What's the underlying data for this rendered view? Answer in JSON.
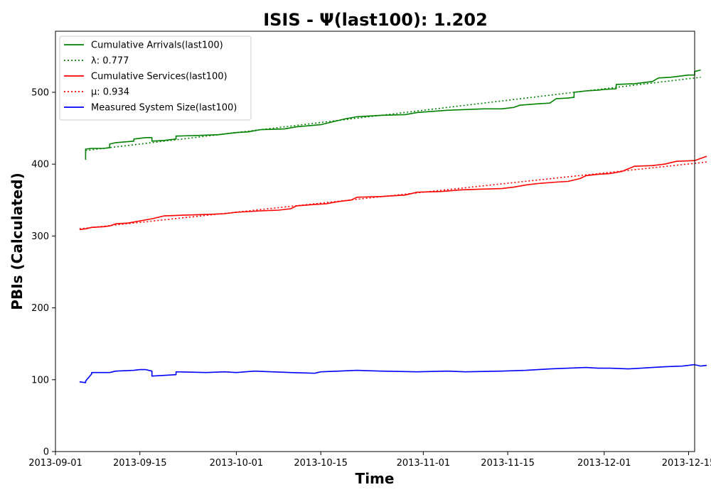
{
  "chart_data": {
    "type": "line",
    "title": "ISIS -  Ψ(last100): 1.202",
    "xlabel": "Time",
    "ylabel": "PBIs (Calculated)",
    "xlim": [
      "2013-09-01",
      "2013-12-16"
    ],
    "ylim": [
      0,
      585
    ],
    "x_ticks": [
      "2013-09-01",
      "2013-09-15",
      "2013-10-01",
      "2013-10-15",
      "2013-11-01",
      "2013-11-15",
      "2013-12-01",
      "2013-12-15"
    ],
    "y_ticks": [
      0,
      100,
      200,
      300,
      400,
      500
    ],
    "grid": false,
    "legend_position": "top-left",
    "series": [
      {
        "name": "Cumulative Arrivals(last100)",
        "color": "#008000",
        "style": "solid",
        "points": [
          [
            "2013-09-06",
            406
          ],
          [
            "2013-09-06",
            408
          ],
          [
            "2013-09-06",
            421
          ],
          [
            "2013-09-07",
            422
          ],
          [
            "2013-09-09",
            422
          ],
          [
            "2013-09-10",
            423
          ],
          [
            "2013-09-10",
            428
          ],
          [
            "2013-09-11",
            430
          ],
          [
            "2013-09-14",
            432
          ],
          [
            "2013-09-14",
            435
          ],
          [
            "2013-09-15",
            436
          ],
          [
            "2013-09-16",
            437
          ],
          [
            "2013-09-17",
            437
          ],
          [
            "2013-09-17",
            432
          ],
          [
            "2013-09-19",
            433
          ],
          [
            "2013-09-20",
            434
          ],
          [
            "2013-09-21",
            435
          ],
          [
            "2013-09-21",
            439
          ],
          [
            "2013-09-25",
            440
          ],
          [
            "2013-09-28",
            441
          ],
          [
            "2013-10-01",
            444
          ],
          [
            "2013-10-03",
            445
          ],
          [
            "2013-10-05",
            448
          ],
          [
            "2013-10-09",
            449
          ],
          [
            "2013-10-11",
            452
          ],
          [
            "2013-10-15",
            455
          ],
          [
            "2013-10-17",
            459
          ],
          [
            "2013-10-19",
            463
          ],
          [
            "2013-10-21",
            466
          ],
          [
            "2013-10-25",
            468
          ],
          [
            "2013-10-29",
            469
          ],
          [
            "2013-10-31",
            472
          ],
          [
            "2013-11-05",
            475
          ],
          [
            "2013-11-08",
            476
          ],
          [
            "2013-11-11",
            477
          ],
          [
            "2013-11-14",
            477
          ],
          [
            "2013-11-16",
            479
          ],
          [
            "2013-11-17",
            482
          ],
          [
            "2013-11-20",
            484
          ],
          [
            "2013-11-22",
            485
          ],
          [
            "2013-11-23",
            491
          ],
          [
            "2013-11-25",
            492
          ],
          [
            "2013-11-26",
            493
          ],
          [
            "2013-11-26",
            500
          ],
          [
            "2013-11-28",
            502
          ],
          [
            "2013-11-30",
            503
          ],
          [
            "2013-12-01",
            504
          ],
          [
            "2013-12-03",
            505
          ],
          [
            "2013-12-03",
            511
          ],
          [
            "2013-12-06",
            512
          ],
          [
            "2013-12-08",
            514
          ],
          [
            "2013-12-09",
            515
          ],
          [
            "2013-12-10",
            520
          ],
          [
            "2013-12-12",
            521
          ],
          [
            "2013-12-13",
            522
          ],
          [
            "2013-12-15",
            524
          ],
          [
            "2013-12-16",
            524
          ],
          [
            "2013-12-16",
            527
          ],
          [
            "2013-12-16",
            529
          ],
          [
            "2013-12-17",
            531
          ]
        ]
      },
      {
        "name": "λ: 0.777",
        "color": "#008000",
        "style": "dotted",
        "points": [
          [
            "2013-09-06",
            419
          ],
          [
            "2013-12-17",
            521
          ]
        ]
      },
      {
        "name": "Cumulative Services(last100)",
        "color": "#ff0000",
        "style": "solid",
        "points": [
          [
            "2013-09-05",
            309
          ],
          [
            "2013-09-06",
            310
          ],
          [
            "2013-09-07",
            312
          ],
          [
            "2013-09-09",
            313
          ],
          [
            "2013-09-10",
            314
          ],
          [
            "2013-09-11",
            317
          ],
          [
            "2013-09-13",
            318
          ],
          [
            "2013-09-15",
            321
          ],
          [
            "2013-09-17",
            324
          ],
          [
            "2013-09-18",
            326
          ],
          [
            "2013-09-19",
            328
          ],
          [
            "2013-09-22",
            329
          ],
          [
            "2013-09-26",
            330
          ],
          [
            "2013-09-29",
            331
          ],
          [
            "2013-10-01",
            333
          ],
          [
            "2013-10-05",
            335
          ],
          [
            "2013-10-08",
            336
          ],
          [
            "2013-10-10",
            338
          ],
          [
            "2013-10-11",
            342
          ],
          [
            "2013-10-14",
            344
          ],
          [
            "2013-10-16",
            345
          ],
          [
            "2013-10-18",
            348
          ],
          [
            "2013-10-20",
            350
          ],
          [
            "2013-10-21",
            354
          ],
          [
            "2013-10-25",
            355
          ],
          [
            "2013-10-29",
            357
          ],
          [
            "2013-10-31",
            361
          ],
          [
            "2013-11-04",
            362
          ],
          [
            "2013-11-07",
            364
          ],
          [
            "2013-11-10",
            365
          ],
          [
            "2013-11-14",
            366
          ],
          [
            "2013-11-16",
            368
          ],
          [
            "2013-11-18",
            371
          ],
          [
            "2013-11-20",
            373
          ],
          [
            "2013-11-23",
            375
          ],
          [
            "2013-11-25",
            376
          ],
          [
            "2013-11-27",
            380
          ],
          [
            "2013-11-28",
            384
          ],
          [
            "2013-11-30",
            386
          ],
          [
            "2013-12-02",
            387
          ],
          [
            "2013-12-04",
            390
          ],
          [
            "2013-12-06",
            397
          ],
          [
            "2013-12-09",
            398
          ],
          [
            "2013-12-11",
            400
          ],
          [
            "2013-12-13",
            404
          ],
          [
            "2013-12-16",
            405
          ],
          [
            "2013-12-17",
            408
          ],
          [
            "2013-12-18",
            411
          ]
        ]
      },
      {
        "name": "μ: 0.934",
        "color": "#ff0000",
        "style": "dotted",
        "points": [
          [
            "2013-09-05",
            310
          ],
          [
            "2013-12-18",
            403
          ]
        ]
      },
      {
        "name": "Measured System Size(last100)",
        "color": "#0000ff",
        "style": "solid",
        "points": [
          [
            "2013-09-05",
            97
          ],
          [
            "2013-09-06",
            96
          ],
          [
            "2013-09-06",
            98
          ],
          [
            "2013-09-07",
            108
          ],
          [
            "2013-09-07",
            110
          ],
          [
            "2013-09-10",
            110
          ],
          [
            "2013-09-11",
            112
          ],
          [
            "2013-09-14",
            113
          ],
          [
            "2013-09-15",
            114
          ],
          [
            "2013-09-16",
            114
          ],
          [
            "2013-09-17",
            112
          ],
          [
            "2013-09-17",
            105
          ],
          [
            "2013-09-19",
            106
          ],
          [
            "2013-09-21",
            107
          ],
          [
            "2013-09-21",
            111
          ],
          [
            "2013-09-26",
            110
          ],
          [
            "2013-09-29",
            111
          ],
          [
            "2013-10-01",
            110
          ],
          [
            "2013-10-04",
            112
          ],
          [
            "2013-10-07",
            111
          ],
          [
            "2013-10-10",
            110
          ],
          [
            "2013-10-14",
            109
          ],
          [
            "2013-10-15",
            111
          ],
          [
            "2013-10-18",
            112
          ],
          [
            "2013-10-21",
            113
          ],
          [
            "2013-10-25",
            112
          ],
          [
            "2013-10-31",
            111
          ],
          [
            "2013-11-05",
            112
          ],
          [
            "2013-11-08",
            111
          ],
          [
            "2013-11-14",
            112
          ],
          [
            "2013-11-18",
            113
          ],
          [
            "2013-11-22",
            115
          ],
          [
            "2013-11-25",
            116
          ],
          [
            "2013-11-28",
            117
          ],
          [
            "2013-11-30",
            116
          ],
          [
            "2013-12-02",
            116
          ],
          [
            "2013-12-05",
            115
          ],
          [
            "2013-12-09",
            117
          ],
          [
            "2013-12-11",
            118
          ],
          [
            "2013-12-14",
            119
          ],
          [
            "2013-12-16",
            121
          ],
          [
            "2013-12-17",
            119
          ],
          [
            "2013-12-18",
            120
          ]
        ]
      }
    ]
  }
}
